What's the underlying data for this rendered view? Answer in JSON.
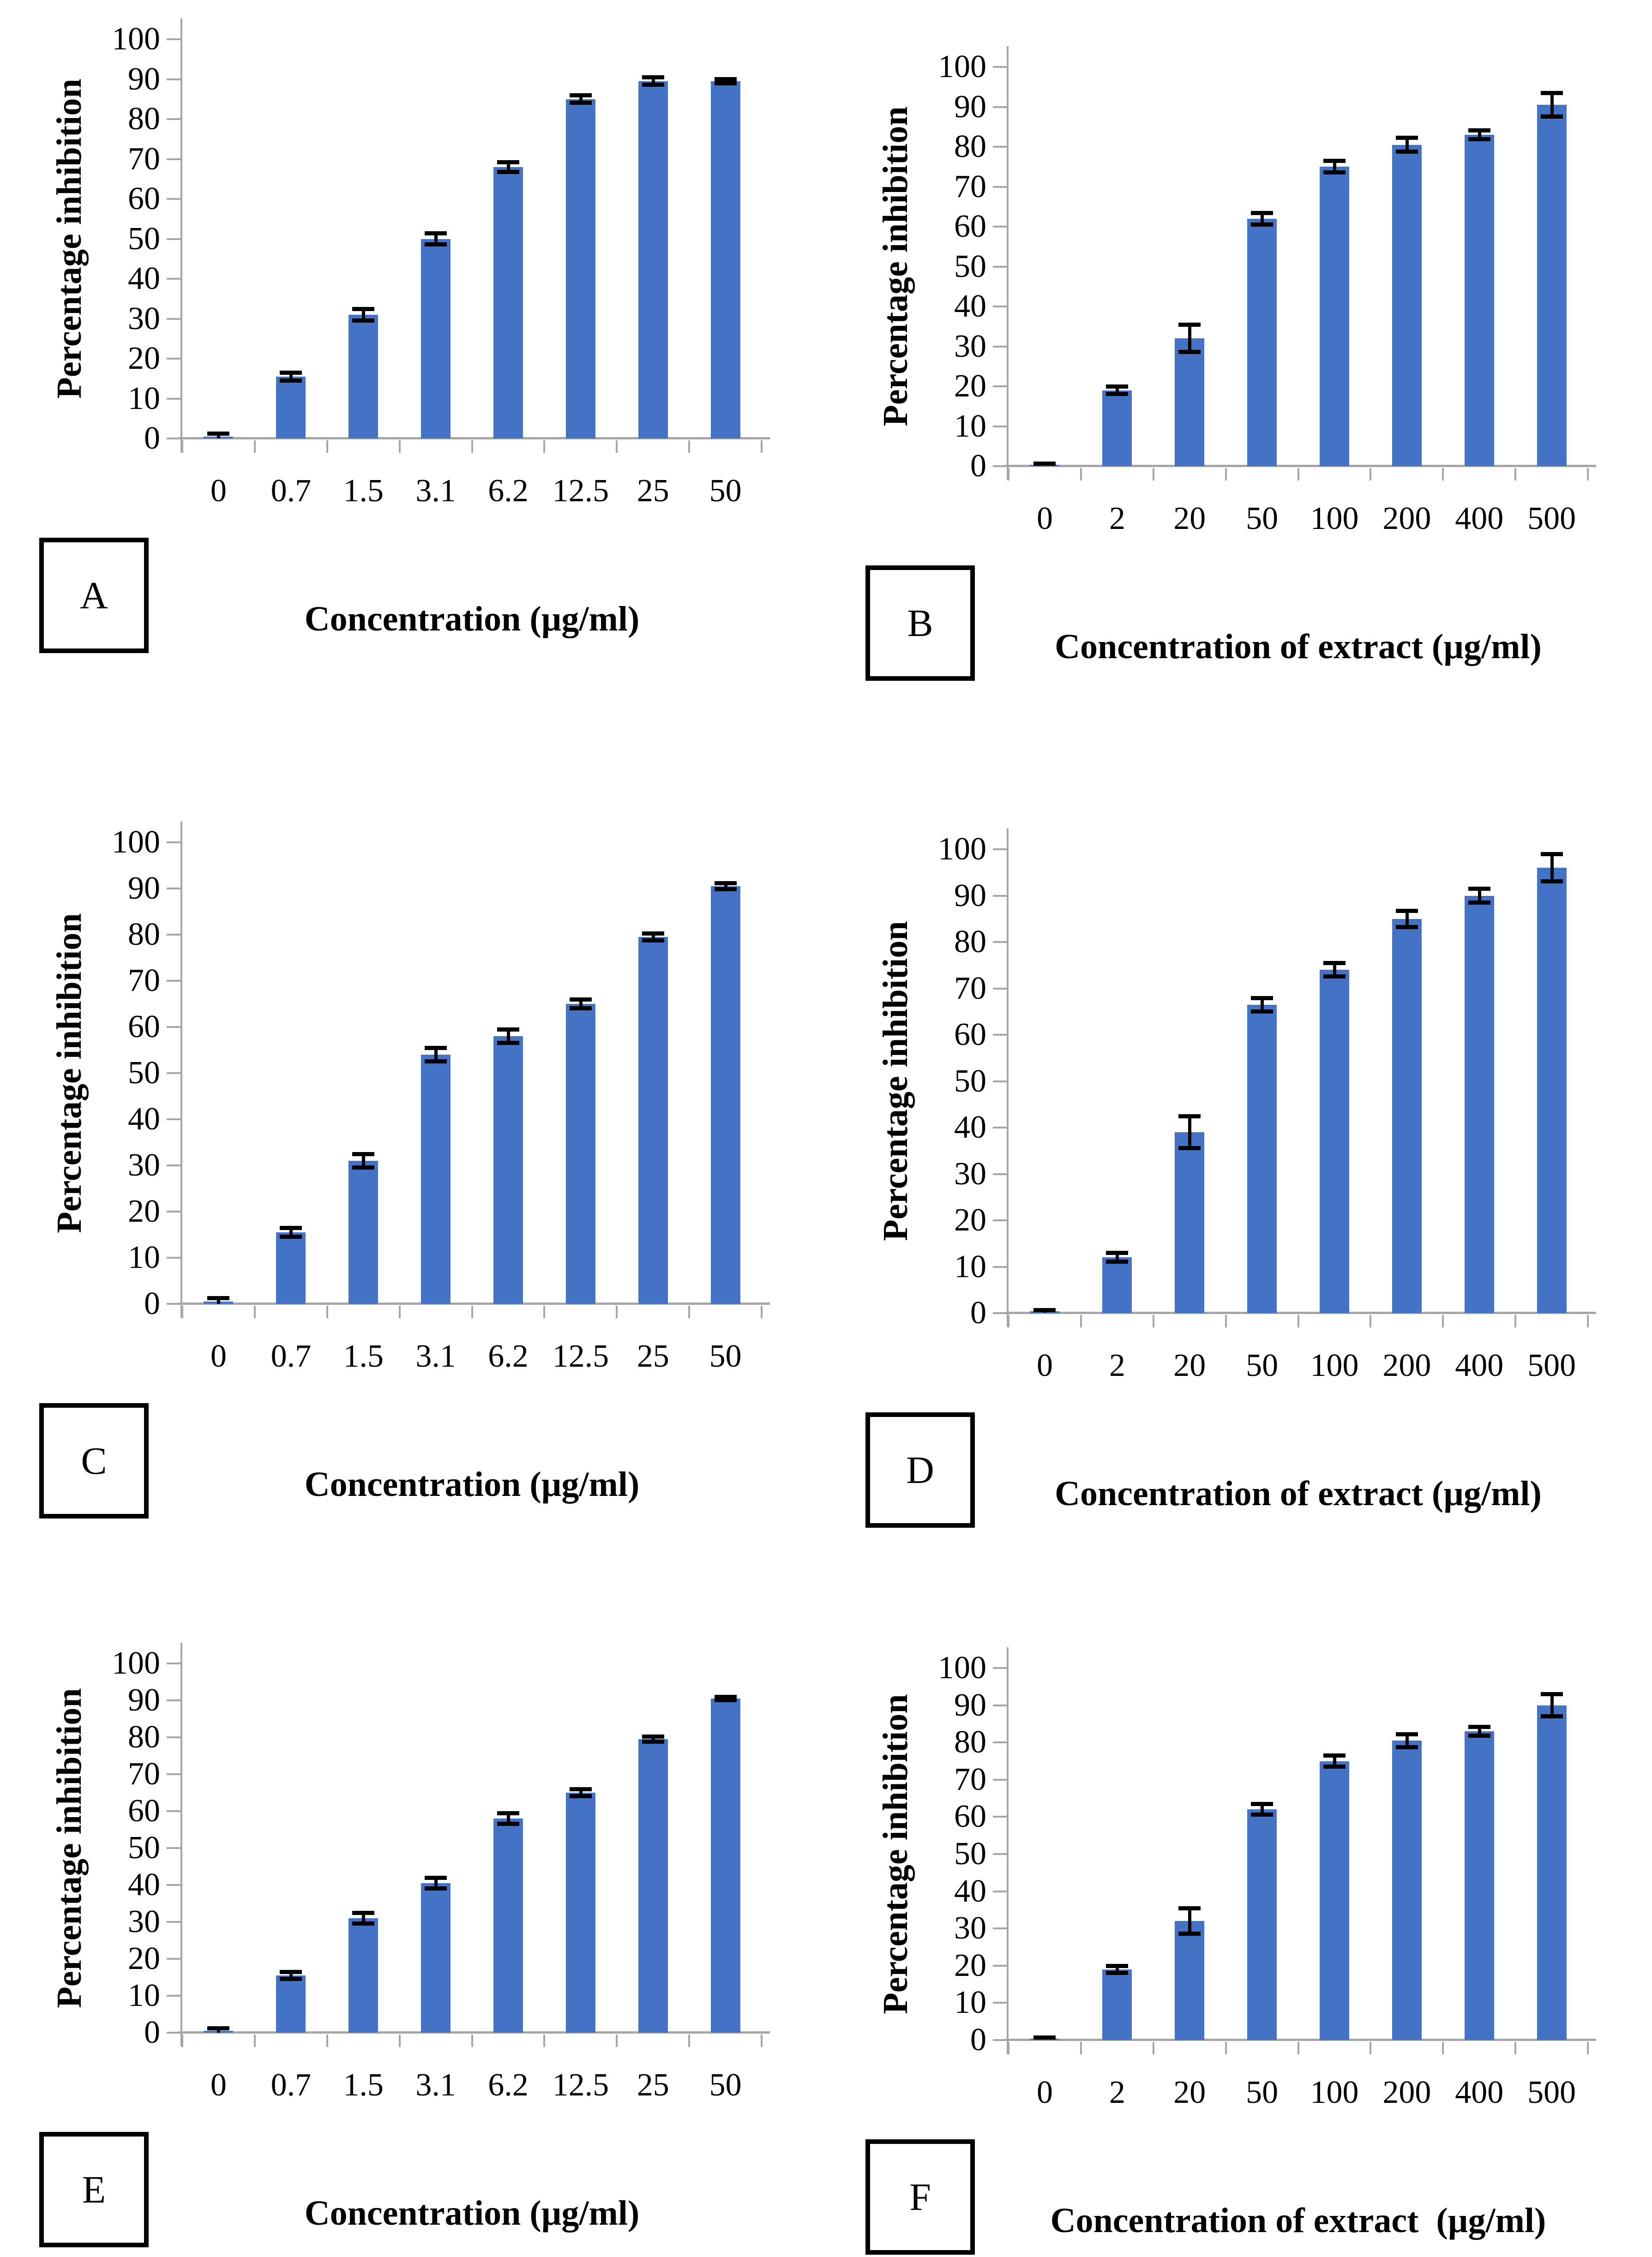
{
  "colors": {
    "bar": "#4472C4",
    "axis": "#A6A6A6",
    "error_bar": "#000000",
    "text": "#000000",
    "panel_box_border": "#000000",
    "background": "#FFFFFF"
  },
  "y_axis": {
    "label": "Percentage inhibition",
    "min": 0,
    "max": 100,
    "step": 10,
    "ticks": [
      0,
      10,
      20,
      30,
      40,
      50,
      60,
      70,
      80,
      90,
      100
    ]
  },
  "chart_data": [
    {
      "type": "bar",
      "panel": "A",
      "title": "",
      "xlabel": "Concentration (µg/ml)",
      "ylabel": "Percentage inhibition",
      "ylim": [
        0,
        100
      ],
      "grid": false,
      "legend": false,
      "categories": [
        "0",
        "0.7",
        "1.5",
        "3.1",
        "6.2",
        "12.5",
        "25",
        "50"
      ],
      "values": [
        0.5,
        15.5,
        31,
        50,
        68,
        85,
        89.5,
        89.5
      ],
      "errors": [
        0.8,
        1,
        1.5,
        1.5,
        1.3,
        1,
        1,
        0.6
      ]
    },
    {
      "type": "bar",
      "panel": "B",
      "title": "",
      "xlabel": "Concentration of extract (µg/ml)",
      "ylabel": "Percentage inhibition",
      "ylim": [
        0,
        100
      ],
      "grid": false,
      "legend": false,
      "categories": [
        "0",
        "2",
        "20",
        "50",
        "100",
        "200",
        "400",
        "500"
      ],
      "values": [
        0.4,
        19,
        32,
        62,
        75,
        80.5,
        83,
        90.5
      ],
      "errors": [
        0.3,
        1,
        3.5,
        1.5,
        1.5,
        1.8,
        1.2,
        3
      ]
    },
    {
      "type": "bar",
      "panel": "C",
      "title": "",
      "xlabel": "Concentration (µg/ml)",
      "ylabel": "Percentage inhibition",
      "ylim": [
        0,
        100
      ],
      "grid": false,
      "legend": false,
      "categories": [
        "0",
        "0.7",
        "1.5",
        "3.1",
        "6.2",
        "12.5",
        "25",
        "50"
      ],
      "values": [
        0.5,
        15.5,
        31,
        54,
        58,
        65,
        79.5,
        90.5
      ],
      "errors": [
        0.8,
        1,
        1.5,
        1.5,
        1.5,
        1,
        0.8,
        0.7
      ]
    },
    {
      "type": "bar",
      "panel": "D",
      "title": "",
      "xlabel": "Concentration of extract (µg/ml)",
      "ylabel": "Percentage inhibition",
      "ylim": [
        0,
        100
      ],
      "grid": false,
      "legend": false,
      "categories": [
        "0",
        "2",
        "20",
        "50",
        "100",
        "200",
        "400",
        "500"
      ],
      "values": [
        0.4,
        12,
        39,
        66.5,
        74,
        85,
        90,
        96
      ],
      "errors": [
        0.3,
        1,
        3.5,
        1.5,
        1.5,
        1.8,
        1.5,
        3
      ]
    },
    {
      "type": "bar",
      "panel": "E",
      "title": "",
      "xlabel": "Concentration (µg/ml)",
      "ylabel": "Percentage inhibition",
      "ylim": [
        0,
        100
      ],
      "grid": false,
      "legend": false,
      "categories": [
        "0",
        "0.7",
        "1.5",
        "3.1",
        "6.2",
        "12.5",
        "25",
        "50"
      ],
      "values": [
        0.5,
        15.5,
        31,
        40.5,
        58,
        65,
        79.5,
        90.5
      ],
      "errors": [
        0.8,
        1,
        1.5,
        1.5,
        1.5,
        1,
        0.8,
        0.5
      ]
    },
    {
      "type": "bar",
      "panel": "F",
      "title": "",
      "xlabel": "Concentration of extract  (µg/ml)",
      "ylabel": "Percentage inhibition",
      "ylim": [
        0,
        100
      ],
      "grid": false,
      "legend": false,
      "categories": [
        "0",
        "2",
        "20",
        "50",
        "100",
        "200",
        "400",
        "500"
      ],
      "values": [
        0.4,
        19,
        32,
        62,
        75,
        80.5,
        83,
        90
      ],
      "errors": [
        0.3,
        1,
        3.5,
        1.5,
        1.5,
        1.8,
        1.2,
        3
      ]
    }
  ]
}
